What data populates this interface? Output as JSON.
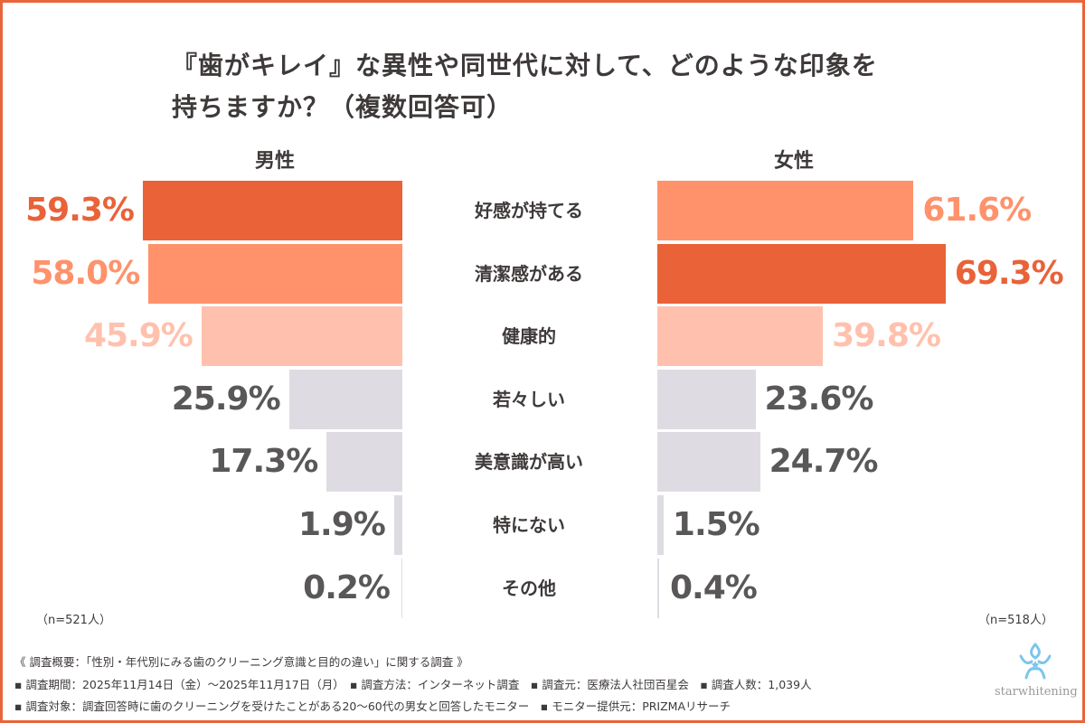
{
  "chart_data": {
    "type": "bar",
    "orientation": "horizontal-butterfly",
    "title": "『歯がキレイ』な異性や同世代に対して、どのような印象を持ちますか？（複数回答可）",
    "categories": [
      "好感が持てる",
      "清潔感がある",
      "健康的",
      "若々しい",
      "美意識が高い",
      "特にない",
      "その他"
    ],
    "series": [
      {
        "name": "男性",
        "values": [
          59.3,
          58.0,
          45.9,
          25.9,
          17.3,
          1.9,
          0.2
        ],
        "labels": [
          "59.3%",
          "58.0%",
          "45.9%",
          "25.9%",
          "17.3%",
          "1.9%",
          "0.2%"
        ],
        "n": "（n=521人）"
      },
      {
        "name": "女性",
        "values": [
          61.6,
          69.3,
          39.8,
          23.6,
          24.7,
          1.5,
          0.4
        ],
        "labels": [
          "61.6%",
          "69.3%",
          "39.8%",
          "23.6%",
          "24.7%",
          "1.5%",
          "0.4%"
        ],
        "n": "（n=518人）"
      }
    ],
    "colors": {
      "rank1": "#E96238",
      "rank2": "#FF926B",
      "rank3": "#FFC1AD",
      "other": "#DEDCE2",
      "other_text": "#595757"
    }
  },
  "title_lines": [
    "『歯がキレイ』な異性や同世代に対して、どのような印象を",
    "持ちますか？（複数回答可）"
  ],
  "footer": [
    "《 調査概要：「性別・年代別にみる歯のクリーニング意識と目的の違い」に関する調査 》",
    "▪ 調査期間：2025年11月14日（金）～2025年11月17日（月）　▪ 調査方法：インターネット調査　▪ 調査元：医療法人社団百星会　▪ 調査人数：1,039人",
    "▪ 調査対象：調査回答時に歯のクリーニングを受けたことがある20～60代の男女と回答したモニター　▪ モニター提供元：PRIZMAリサーチ"
  ],
  "logo": {
    "text": "starwhitening",
    "icon": "star-flower-logo-icon"
  }
}
